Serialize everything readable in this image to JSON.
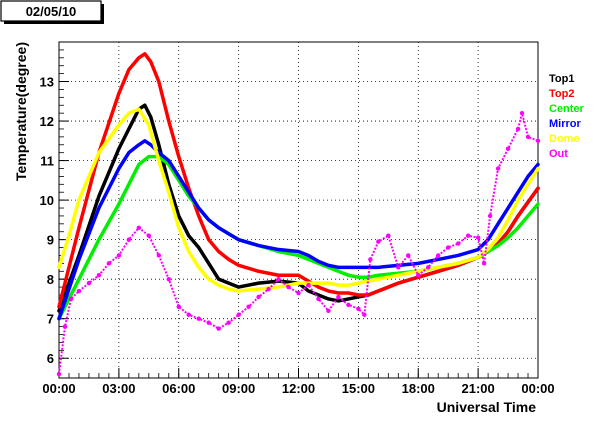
{
  "header": {
    "date_label": "02/05/10"
  },
  "chart_data": {
    "type": "scatter",
    "title": "",
    "xlabel": "Universal Time",
    "ylabel": "Temperature(degree)",
    "x_unit": "hours",
    "xlim": [
      0,
      24
    ],
    "ylim": [
      5.5,
      14
    ],
    "x_ticks": [
      0,
      3,
      6,
      9,
      12,
      15,
      18,
      21,
      24
    ],
    "x_tick_labels": [
      "00:00",
      "03:00",
      "06:00",
      "09:00",
      "12:00",
      "15:00",
      "18:00",
      "21:00",
      "00:00"
    ],
    "y_ticks": [
      6,
      7,
      8,
      9,
      10,
      11,
      12,
      13
    ],
    "y_tick_labels": [
      "6",
      "7",
      "8",
      "9",
      "10",
      "11",
      "12",
      "13"
    ],
    "grid": true,
    "legend_position": "right",
    "series": [
      {
        "name": "Top1",
        "color": "#000000",
        "x": [
          0,
          1,
          2,
          3,
          3.5,
          4,
          4.3,
          4.6,
          5,
          5.5,
          6,
          6.5,
          7,
          7.5,
          8,
          8.5,
          9,
          10,
          11,
          12,
          12.5,
          13,
          13.5,
          14,
          14.5,
          15,
          15.5,
          16,
          17,
          18,
          19,
          20,
          21,
          21.5,
          22,
          22.5,
          23,
          23.5,
          24
        ],
        "y": [
          7.2,
          8.6,
          10.1,
          11.3,
          11.8,
          12.3,
          12.4,
          12.1,
          11.4,
          10.4,
          9.6,
          9.1,
          8.8,
          8.4,
          8.0,
          7.9,
          7.8,
          7.9,
          7.95,
          7.9,
          7.7,
          7.6,
          7.5,
          7.45,
          7.5,
          7.55,
          7.6,
          7.7,
          7.9,
          8.05,
          8.2,
          8.35,
          8.55,
          8.7,
          8.9,
          9.2,
          9.6,
          9.95,
          10.3
        ]
      },
      {
        "name": "Top2",
        "color": "#ff0000",
        "x": [
          0,
          1,
          2,
          3,
          3.5,
          4,
          4.3,
          4.6,
          5,
          5.5,
          6,
          6.5,
          7,
          7.5,
          8,
          8.5,
          9,
          10,
          11,
          12,
          12.5,
          13,
          13.5,
          14,
          14.5,
          15,
          15.5,
          16,
          17,
          18,
          19,
          20,
          21,
          21.5,
          22,
          22.5,
          23,
          23.5,
          24
        ],
        "y": [
          7.3,
          9.3,
          11.2,
          12.7,
          13.3,
          13.6,
          13.7,
          13.5,
          13.0,
          12.0,
          11.1,
          10.3,
          9.6,
          9.0,
          8.7,
          8.5,
          8.35,
          8.2,
          8.1,
          8.1,
          7.95,
          7.8,
          7.7,
          7.65,
          7.65,
          7.6,
          7.6,
          7.7,
          7.9,
          8.05,
          8.2,
          8.35,
          8.55,
          8.7,
          8.9,
          9.2,
          9.6,
          9.95,
          10.3
        ]
      },
      {
        "name": "Center",
        "color": "#00ee00",
        "x": [
          0,
          1,
          2,
          3,
          3.5,
          4,
          4.5,
          5,
          5.5,
          6,
          6.5,
          7,
          7.5,
          8,
          8.5,
          9,
          10,
          11,
          12,
          12.5,
          13,
          13.5,
          14,
          14.5,
          15,
          15.5,
          16,
          17,
          18,
          19,
          20,
          21,
          21.5,
          22,
          22.5,
          23,
          23.5,
          24
        ],
        "y": [
          7.0,
          8.0,
          9.0,
          9.9,
          10.4,
          10.9,
          11.1,
          11.1,
          10.9,
          10.5,
          10.1,
          9.8,
          9.5,
          9.3,
          9.15,
          9.0,
          8.85,
          8.7,
          8.6,
          8.5,
          8.4,
          8.3,
          8.2,
          8.1,
          8.05,
          8.05,
          8.1,
          8.15,
          8.2,
          8.3,
          8.4,
          8.55,
          8.7,
          8.85,
          9.05,
          9.3,
          9.6,
          9.9
        ]
      },
      {
        "name": "Mirror",
        "color": "#0000ff",
        "x": [
          0,
          1,
          2,
          3,
          3.5,
          4,
          4.3,
          4.6,
          5,
          5.5,
          6,
          6.5,
          7,
          7.5,
          8,
          8.5,
          9,
          10,
          11,
          12,
          12.5,
          13,
          13.5,
          14,
          14.5,
          15,
          15.5,
          16,
          17,
          18,
          19,
          20,
          21,
          21.5,
          22,
          22.5,
          23,
          23.5,
          24
        ],
        "y": [
          7.0,
          8.5,
          9.8,
          10.8,
          11.2,
          11.4,
          11.5,
          11.4,
          11.2,
          11.0,
          10.6,
          10.2,
          9.8,
          9.5,
          9.3,
          9.15,
          9.0,
          8.85,
          8.75,
          8.7,
          8.6,
          8.45,
          8.35,
          8.3,
          8.3,
          8.3,
          8.3,
          8.3,
          8.35,
          8.4,
          8.5,
          8.6,
          8.75,
          9.0,
          9.4,
          9.8,
          10.2,
          10.6,
          10.9
        ]
      },
      {
        "name": "Dome",
        "color": "#ffff00",
        "x": [
          0,
          0.5,
          1,
          2,
          3,
          3.5,
          4,
          4.5,
          5,
          5.5,
          6,
          6.5,
          7,
          7.5,
          8,
          8.5,
          9,
          10,
          11,
          12,
          12.5,
          13,
          13.5,
          14,
          14.5,
          15,
          15.5,
          16,
          17,
          18,
          19,
          20,
          21,
          21.5,
          22,
          22.5,
          23,
          23.5,
          24
        ],
        "y": [
          8.3,
          9.1,
          10.0,
          11.2,
          11.9,
          12.2,
          12.3,
          11.9,
          11.0,
          10.2,
          9.3,
          8.7,
          8.3,
          8.0,
          7.85,
          7.75,
          7.7,
          7.75,
          7.8,
          7.9,
          7.9,
          7.9,
          7.9,
          7.85,
          7.85,
          7.9,
          7.95,
          8.0,
          8.1,
          8.2,
          8.3,
          8.4,
          8.55,
          8.75,
          9.05,
          9.5,
          10.0,
          10.4,
          10.8
        ]
      },
      {
        "name": "Out",
        "color": "#ff00ff",
        "x": [
          0,
          0.3,
          0.6,
          1,
          1.5,
          2,
          2.5,
          3,
          3.5,
          4,
          4.5,
          5,
          5.5,
          6,
          6.5,
          7,
          7.5,
          8,
          8.5,
          9,
          9.5,
          10,
          10.5,
          11,
          11.5,
          12,
          12.5,
          13,
          13.5,
          14,
          14.5,
          15,
          15.3,
          15.6,
          16,
          16.5,
          17,
          17.5,
          18,
          18.5,
          19,
          19.5,
          20,
          20.5,
          21,
          21.3,
          21.6,
          22,
          22.5,
          23,
          23.2,
          23.5,
          24
        ],
        "y": [
          5.6,
          6.8,
          7.5,
          7.7,
          7.9,
          8.1,
          8.4,
          8.6,
          9.0,
          9.3,
          9.1,
          8.6,
          8.0,
          7.3,
          7.1,
          7.0,
          6.9,
          6.75,
          6.9,
          7.1,
          7.3,
          7.55,
          7.75,
          8.0,
          7.8,
          7.65,
          7.85,
          7.5,
          7.2,
          7.55,
          7.35,
          7.25,
          7.1,
          8.5,
          8.95,
          9.1,
          8.3,
          8.6,
          8.1,
          8.3,
          8.6,
          8.8,
          8.9,
          9.1,
          9.05,
          8.4,
          9.6,
          10.8,
          11.3,
          11.8,
          12.2,
          11.6,
          11.5
        ]
      }
    ]
  }
}
